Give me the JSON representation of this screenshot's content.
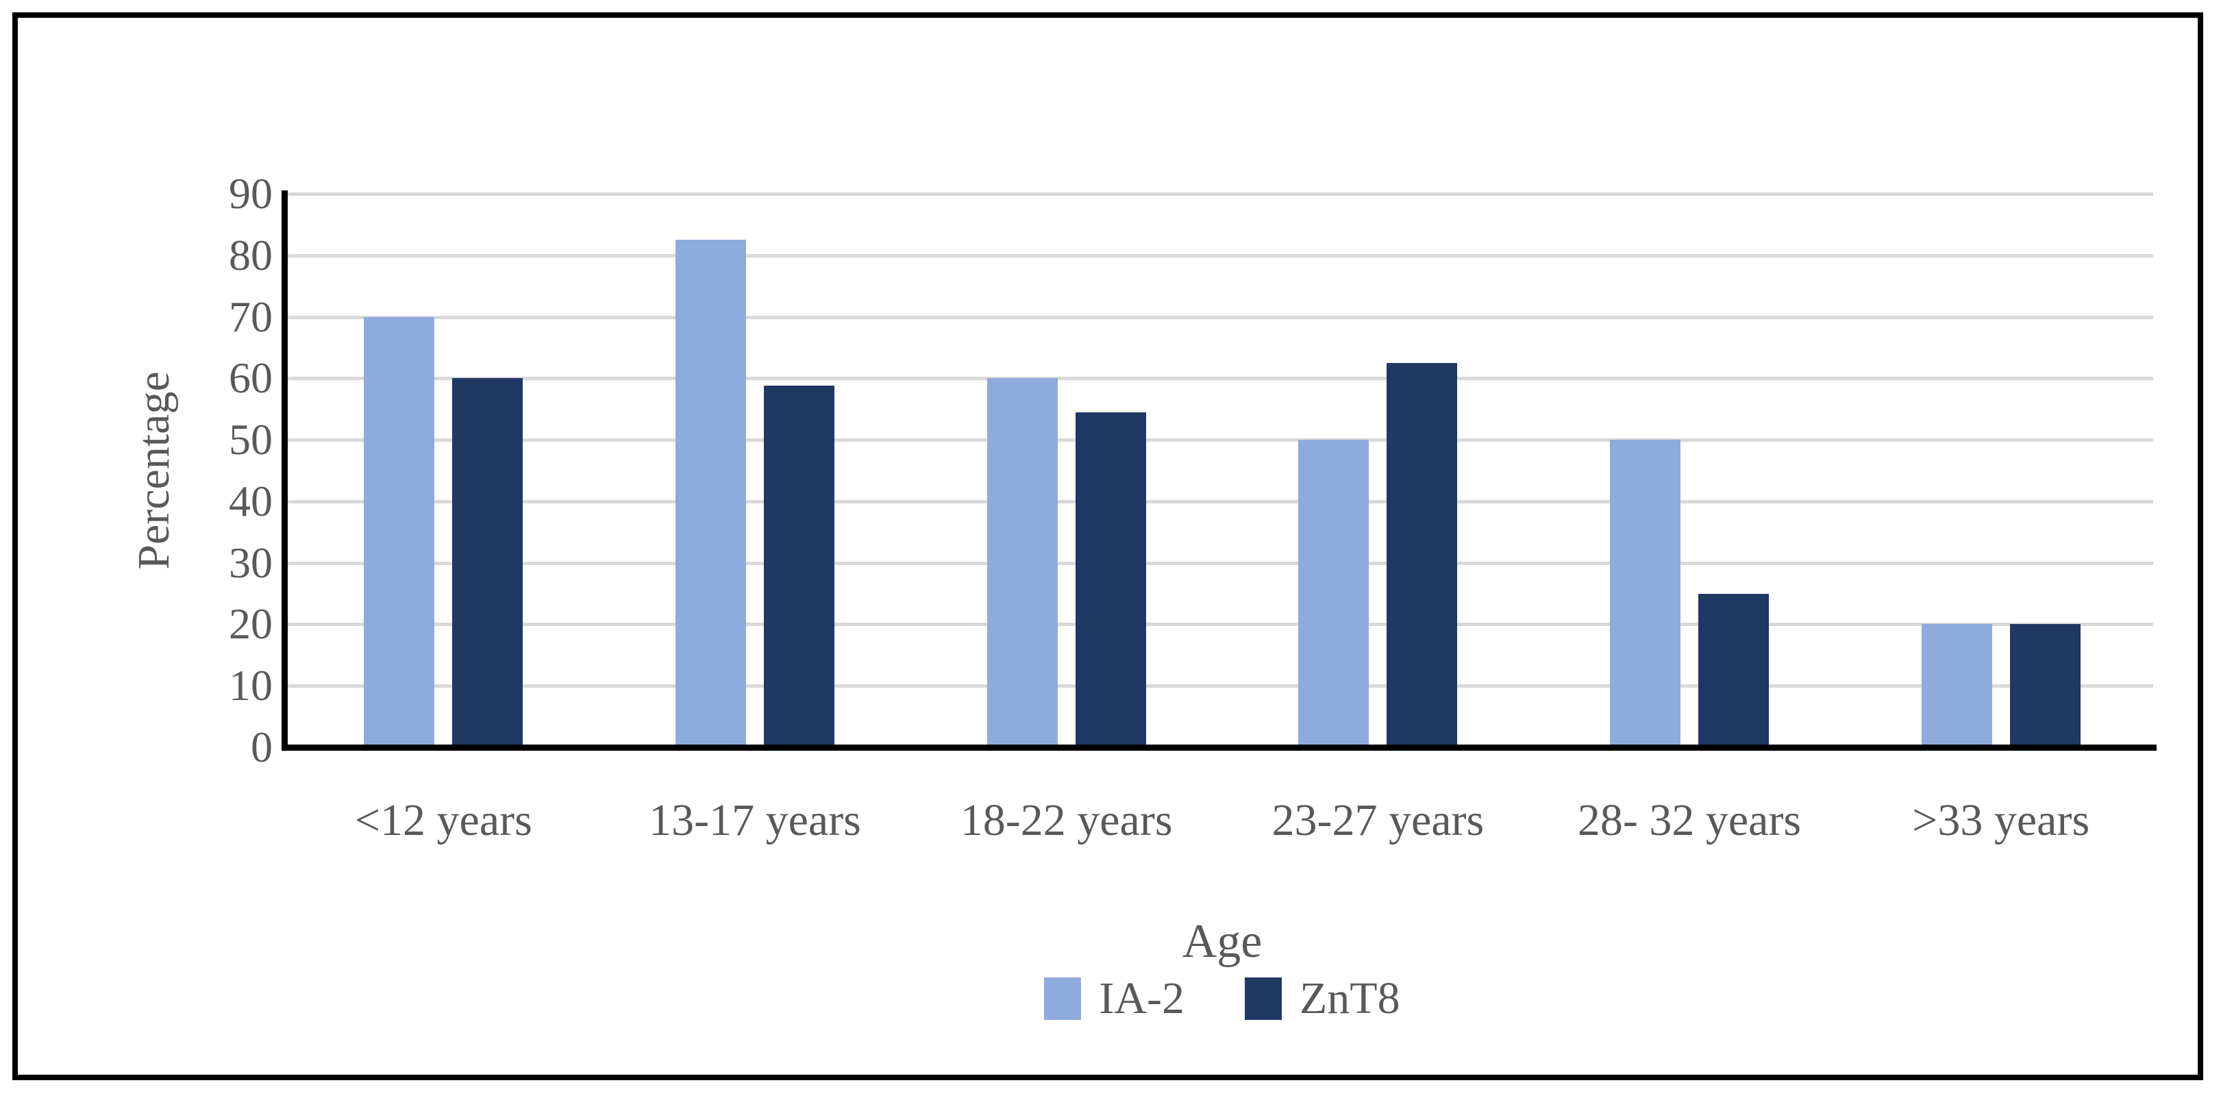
{
  "figure": {
    "background_color": "#FFFFFF",
    "frame_border_color": "#000000"
  },
  "chart_data": {
    "type": "bar",
    "title": "",
    "categories": [
      "<12 years",
      "13-17 years",
      "18-22 years",
      "23-27 years",
      "28- 32 years",
      ">33 years"
    ],
    "series": [
      {
        "name": "IA-2",
        "color": "#8FAADC",
        "values": [
          70,
          82.5,
          60,
          50,
          50,
          20
        ]
      },
      {
        "name": "ZnT8",
        "color": "#1F3864",
        "values": [
          60,
          58.8,
          54.5,
          62.5,
          25,
          20
        ]
      }
    ],
    "xlabel": "Age",
    "ylabel": "Percentage",
    "ylim": [
      0,
      90
    ],
    "yticks": [
      0,
      10,
      20,
      30,
      40,
      50,
      60,
      70,
      80,
      90
    ],
    "grid": true,
    "gridline_color": "#D9D9D9",
    "axis_line_color": "#000000",
    "tick_text_color": "#595959",
    "legend_position": "bottom"
  }
}
